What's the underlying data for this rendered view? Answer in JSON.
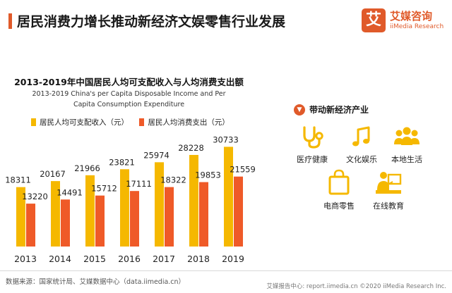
{
  "header": {
    "title": "居民消费力增长推动新经济文娱零售行业发展"
  },
  "brand": {
    "logo_mark": "艾",
    "logo_cn": "艾媒咨询",
    "logo_en": "iiMedia Research",
    "accent_color": "#e05a2a"
  },
  "chart_data": {
    "type": "bar",
    "title": "2013-2019年中国居民人均可支配收入与人均消费支出额",
    "subtitle": "2013-2019 China's per Capita Disposable Income and Per Capita Consumption Expenditure",
    "categories": [
      "2013",
      "2014",
      "2015",
      "2016",
      "2017",
      "2018",
      "2019"
    ],
    "series": [
      {
        "name": "居民人均可支配收入（元）",
        "color": "#f5b800",
        "values": [
          18311,
          20167,
          21966,
          23821,
          25974,
          28228,
          30733
        ]
      },
      {
        "name": "居民人均消费支出（元）",
        "color": "#ef5a28",
        "values": [
          13220,
          14491,
          15712,
          17111,
          18322,
          19853,
          21559
        ]
      }
    ],
    "xlabel": "",
    "ylabel": "",
    "ylim": [
      0,
      33000
    ],
    "grid": false,
    "legend_placement": "top-left"
  },
  "panel": {
    "heading": "带动新经济产业",
    "items": [
      {
        "label": "医疗健康",
        "icon": "stethoscope-icon"
      },
      {
        "label": "文化娱乐",
        "icon": "music-note-icon"
      },
      {
        "label": "本地生活",
        "icon": "people-icon"
      },
      {
        "label": "电商零售",
        "icon": "shopping-bag-icon"
      },
      {
        "label": "在线教育",
        "icon": "online-teacher-icon"
      }
    ]
  },
  "footer": {
    "source": "数据来源：国家统计局、艾媒数据中心（data.iimedia.cn）",
    "report": "艾媒报告中心: report.iimedia.cn   ©2020  iiMedia Research  Inc."
  }
}
